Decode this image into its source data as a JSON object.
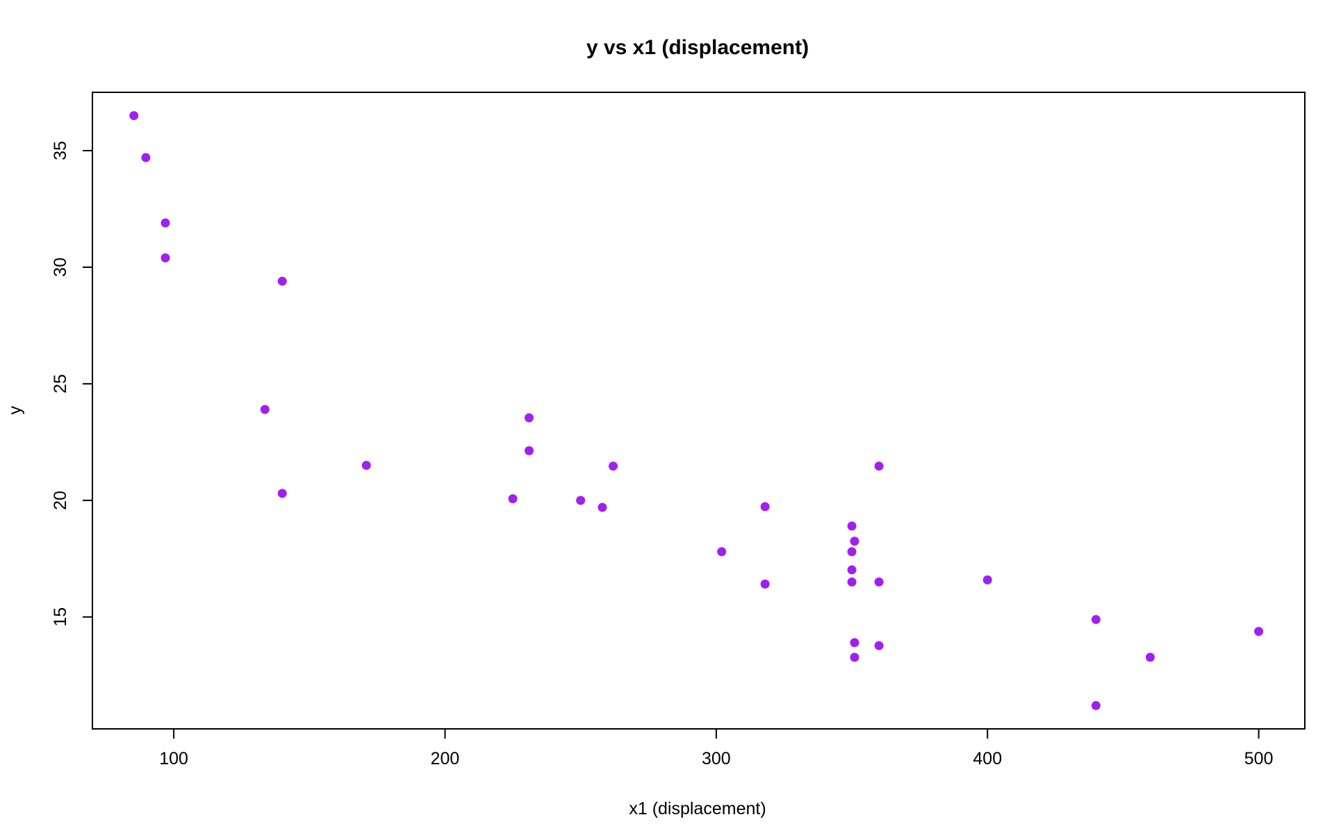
{
  "chart_data": {
    "type": "scatter",
    "title": "y vs x1 (displacement)",
    "xlabel": "x1 (displacement)",
    "ylabel": "y",
    "xlim": [
      70.0,
      517.0
    ],
    "ylim": [
      10.2,
      37.5
    ],
    "x_ticks": [
      100,
      200,
      300,
      400,
      500
    ],
    "y_ticks": [
      15,
      20,
      25,
      30,
      35
    ],
    "grid": false,
    "legend": "none",
    "point_color": "#A020F0",
    "points": [
      {
        "x": 85.3,
        "y": 36.5
      },
      {
        "x": 89.7,
        "y": 34.7
      },
      {
        "x": 96.9,
        "y": 31.9
      },
      {
        "x": 96.9,
        "y": 30.4
      },
      {
        "x": 140.0,
        "y": 29.4
      },
      {
        "x": 133.6,
        "y": 23.9
      },
      {
        "x": 140.0,
        "y": 20.3
      },
      {
        "x": 171.0,
        "y": 21.5
      },
      {
        "x": 225.0,
        "y": 20.07
      },
      {
        "x": 231.0,
        "y": 23.54
      },
      {
        "x": 231.0,
        "y": 22.13
      },
      {
        "x": 250.0,
        "y": 20.0
      },
      {
        "x": 258.0,
        "y": 19.7
      },
      {
        "x": 262.0,
        "y": 21.47
      },
      {
        "x": 302.0,
        "y": 17.8
      },
      {
        "x": 318.0,
        "y": 19.73
      },
      {
        "x": 318.0,
        "y": 16.41
      },
      {
        "x": 350.0,
        "y": 18.9
      },
      {
        "x": 351.0,
        "y": 18.25
      },
      {
        "x": 350.0,
        "y": 17.8
      },
      {
        "x": 350.0,
        "y": 17.02
      },
      {
        "x": 350.0,
        "y": 16.5
      },
      {
        "x": 351.0,
        "y": 13.9
      },
      {
        "x": 351.0,
        "y": 13.27
      },
      {
        "x": 360.0,
        "y": 21.47
      },
      {
        "x": 360.0,
        "y": 16.5
      },
      {
        "x": 360.0,
        "y": 13.77
      },
      {
        "x": 400.0,
        "y": 16.59
      },
      {
        "x": 440.0,
        "y": 14.89
      },
      {
        "x": 440.0,
        "y": 11.2
      },
      {
        "x": 460.0,
        "y": 13.27
      },
      {
        "x": 500.0,
        "y": 14.38
      }
    ]
  }
}
